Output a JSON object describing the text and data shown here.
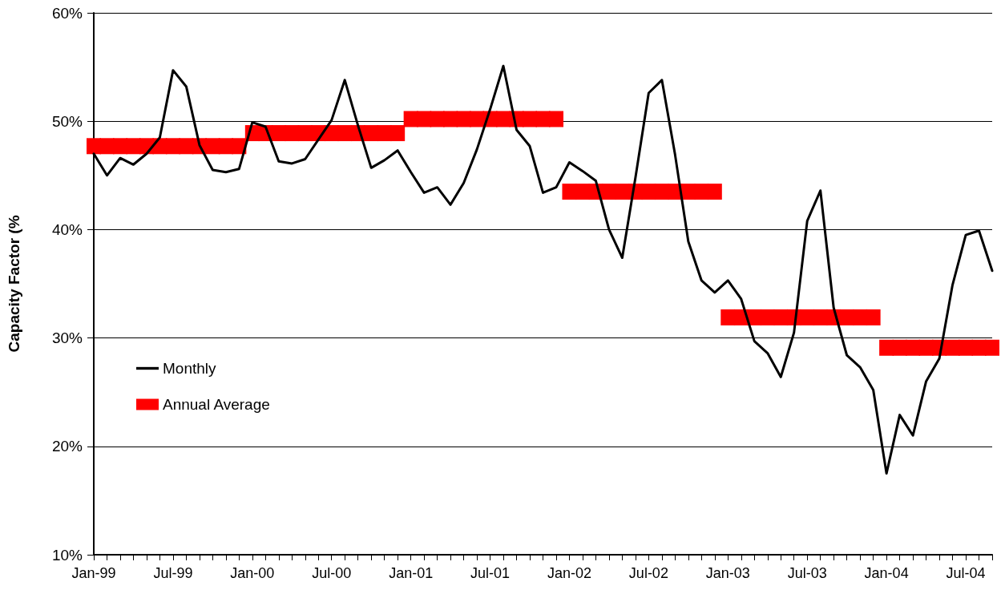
{
  "chart_data": {
    "type": "line",
    "ylabel": "Capacity Factor (%",
    "categories": [
      "Jan-99",
      null,
      null,
      null,
      null,
      null,
      "Jul-99",
      null,
      null,
      null,
      null,
      null,
      "Jan-00",
      null,
      null,
      null,
      null,
      null,
      "Jul-00",
      null,
      null,
      null,
      null,
      null,
      "Jan-01",
      null,
      null,
      null,
      null,
      null,
      "Jul-01",
      null,
      null,
      null,
      null,
      null,
      "Jan-02",
      null,
      null,
      null,
      null,
      null,
      "Jul-02",
      null,
      null,
      null,
      null,
      null,
      "Jan-03",
      null,
      null,
      null,
      null,
      null,
      "Jul-03",
      null,
      null,
      null,
      null,
      null,
      "Jan-04",
      null,
      null,
      null,
      null,
      null,
      "Jul-04",
      null,
      null
    ],
    "series": [
      {
        "name": "Monthly",
        "color": "#000000",
        "marker": "none",
        "line_style": "solid",
        "values": [
          47.0,
          45.0,
          46.6,
          46.0,
          47.0,
          48.5,
          54.7,
          53.2,
          47.8,
          45.5,
          45.3,
          45.6,
          49.9,
          49.5,
          46.3,
          46.1,
          46.5,
          48.3,
          50.1,
          53.8,
          49.6,
          45.7,
          46.4,
          47.3,
          45.3,
          43.4,
          43.9,
          42.3,
          44.3,
          47.4,
          51.1,
          55.1,
          49.2,
          47.7,
          43.4,
          43.9,
          46.2,
          45.4,
          44.5,
          40.0,
          37.4,
          44.8,
          52.6,
          53.8,
          46.9,
          38.9,
          35.3,
          34.2,
          35.3,
          33.6,
          29.7,
          28.6,
          26.4,
          30.5,
          40.8,
          43.6,
          32.8,
          28.4,
          27.3,
          25.2,
          17.5,
          22.9,
          21.0,
          26.0,
          28.1,
          34.9,
          39.5,
          39.9,
          36.2
        ]
      },
      {
        "name": "Annual Average",
        "type": "scatter",
        "color": "#ff0000",
        "marker": "square",
        "values": [
          47.7,
          47.7,
          47.7,
          47.7,
          47.7,
          47.7,
          47.7,
          47.7,
          47.7,
          47.7,
          47.7,
          47.7,
          48.9,
          48.9,
          48.9,
          48.9,
          48.9,
          48.9,
          48.9,
          48.9,
          48.9,
          48.9,
          48.9,
          48.9,
          50.2,
          50.2,
          50.2,
          50.2,
          50.2,
          50.2,
          50.2,
          50.2,
          50.2,
          50.2,
          50.2,
          50.2,
          43.5,
          43.5,
          43.5,
          43.5,
          43.5,
          43.5,
          43.5,
          43.5,
          43.5,
          43.5,
          43.5,
          43.5,
          31.9,
          31.9,
          31.9,
          31.9,
          31.9,
          31.9,
          31.9,
          31.9,
          31.9,
          31.9,
          31.9,
          31.9,
          29.1,
          29.1,
          29.1,
          29.1,
          29.1,
          29.1,
          29.1,
          29.1,
          29.1
        ]
      }
    ],
    "ylim": [
      10,
      60
    ],
    "yticks": [
      {
        "value": 10,
        "label": "10%"
      },
      {
        "value": 20,
        "label": "20%"
      },
      {
        "value": 30,
        "label": "30%"
      },
      {
        "value": 40,
        "label": "40%"
      },
      {
        "value": 50,
        "label": "50%"
      },
      {
        "value": 60,
        "label": "60%"
      }
    ],
    "grid": "y",
    "legend": "left"
  }
}
